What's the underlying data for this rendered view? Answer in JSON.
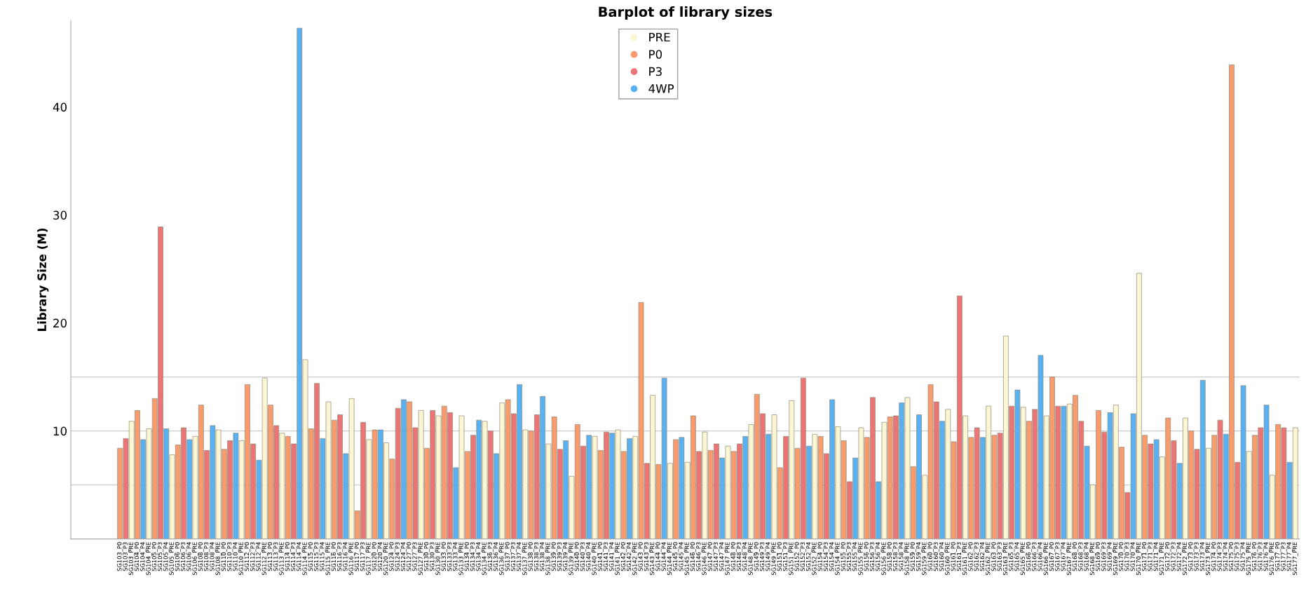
{
  "chart_data": {
    "type": "bar",
    "title": "Barplot of library sizes",
    "ylabel": "Library Size (M)",
    "categories": [
      "SG103_P0",
      "SG103_P3",
      "SG103_PRE",
      "SG104_P0",
      "SG104_P4",
      "SG104_PRE",
      "SG105_P0",
      "SG105_P3",
      "SG105_P4",
      "SG105_PRE",
      "SG106_P0",
      "SG106_P3",
      "SG106_P4",
      "SG106_PRE",
      "SG108_P0",
      "SG108_P3",
      "SG108_P4",
      "SG108_PRE",
      "SG110_P0",
      "SG110_P3",
      "SG110_P4",
      "SG110_PRE",
      "SG112_P0",
      "SG112_P3",
      "SG112_P4",
      "SG112_PRE",
      "SG113_P0",
      "SG113_P3",
      "SG113_PRE",
      "SG114_P0",
      "SG114_P3",
      "SG114_P4",
      "SG114_PRE",
      "SG115_P0",
      "SG115_P3",
      "SG115_P4",
      "SG115_PRE",
      "SG116_P0",
      "SG116_P3",
      "SG116_P4",
      "SG116_PRE",
      "SG117_P0",
      "SG117_P3",
      "SG117_PRE",
      "SG120_P0",
      "SG120_P4",
      "SG120_PRE",
      "SG124_P0",
      "SG124_P3",
      "SG124_P4",
      "SG127_P0",
      "SG127_P3",
      "SG127_PRE",
      "SG130_P0",
      "SG130_P3",
      "SG130_PRE",
      "SG133_P0",
      "SG133_P3",
      "SG133_P4",
      "SG133_PRE",
      "SG134_P0",
      "SG134_P3",
      "SG134_P4",
      "SG134_PRE",
      "SG136_P3",
      "SG136_P4",
      "SG136_PRE",
      "SG137_P0",
      "SG137_P3",
      "SG137_P4",
      "SG137_PRE",
      "SG138_P0",
      "SG138_P3",
      "SG138_P4",
      "SG138_PRE",
      "SG139_P0",
      "SG139_P3",
      "SG139_P4",
      "SG139_PRE",
      "SG140_P0",
      "SG140_P3",
      "SG140_P4",
      "SG140_PRE",
      "SG141_P0",
      "SG141_P3",
      "SG141_P4",
      "SG141_PRE",
      "SG142_P0",
      "SG142_P4",
      "SG142_PRE",
      "SG143_P0",
      "SG143_P3",
      "SG143_PRE",
      "SG144_P0",
      "SG144_P4",
      "SG144_PRE",
      "SG145_P0",
      "SG145_P4",
      "SG145_PRE",
      "SG146_P0",
      "SG146_P3",
      "SG146_PRE",
      "SG147_P0",
      "SG147_P3",
      "SG147_P4",
      "SG147_PRE",
      "SG148_P0",
      "SG148_P3",
      "SG148_P4",
      "SG148_PRE",
      "SG149_P0",
      "SG149_P3",
      "SG149_P4",
      "SG149_PRE",
      "SG151_P0",
      "SG151_P3",
      "SG151_PRE",
      "SG152_P0",
      "SG152_P3",
      "SG152_P4",
      "SG152_PRE",
      "SG154_P0",
      "SG154_P3",
      "SG154_P4",
      "SG154_PRE",
      "SG155_P0",
      "SG155_P3",
      "SG155_P4",
      "SG155_PRE",
      "SG156_P0",
      "SG156_P3",
      "SG156_P4",
      "SG156_PRE",
      "SG158_P0",
      "SG158_P3",
      "SG158_P4",
      "SG158_PRE",
      "SG159_P0",
      "SG159_P4",
      "SG159_PRE",
      "SG160_P0",
      "SG160_P3",
      "SG160_P4",
      "SG160_PRE",
      "SG161_P0",
      "SG161_P3",
      "SG161_PRE",
      "SG162_P0",
      "SG162_P3",
      "SG162_P4",
      "SG162_PRE",
      "SG163_P0",
      "SG163_P3",
      "SG163_PRE",
      "SG165_P3",
      "SG165_P4",
      "SG165_PRE",
      "SG166_P0",
      "SG166_P3",
      "SG166_P4",
      "SG166_PRE",
      "SG167_P0",
      "SG167_P3",
      "SG167_P4",
      "SG167_PRE",
      "SG168_P0",
      "SG168_P3",
      "SG168_P4",
      "SG168_PRE",
      "SG169_P0",
      "SG169_P3",
      "SG169_P4",
      "SG169_PRE",
      "SG170_P0",
      "SG170_P3",
      "SG170_P4",
      "SG170_PRE",
      "SG171_P0",
      "SG171_P3",
      "SG171_P4",
      "SG171_PRE",
      "SG172_P0",
      "SG172_P3",
      "SG172_P4",
      "SG172_PRE",
      "SG173_P0",
      "SG173_P3",
      "SG173_P4",
      "SG173_PRE",
      "SG174_P0",
      "SG174_P3",
      "SG174_P4",
      "SG175_P0",
      "SG175_P3",
      "SG175_P4",
      "SG175_PRE",
      "SG176_P0",
      "SG176_P3",
      "SG176_P4",
      "SG176_PRE",
      "SG177_P0",
      "SG177_P3",
      "SG177_P4",
      "SG177_PRE"
    ],
    "series": [
      {
        "name": "PRE",
        "color": "#fdf6d3",
        "values": [
          null,
          null,
          10.9,
          null,
          null,
          10.2,
          null,
          null,
          null,
          7.8,
          null,
          null,
          null,
          9.5,
          null,
          null,
          null,
          10.1,
          null,
          null,
          null,
          9.1,
          null,
          null,
          null,
          14.9,
          null,
          null,
          9.8,
          null,
          null,
          null,
          16.6,
          null,
          null,
          null,
          12.7,
          null,
          null,
          null,
          13.0,
          null,
          null,
          9.2,
          null,
          null,
          8.9,
          null,
          null,
          null,
          null,
          null,
          11.9,
          null,
          null,
          11.4,
          null,
          null,
          null,
          11.4,
          null,
          null,
          null,
          10.9,
          null,
          null,
          12.6,
          null,
          null,
          null,
          10.1,
          null,
          null,
          null,
          8.8,
          null,
          null,
          null,
          5.8,
          null,
          null,
          null,
          9.5,
          null,
          null,
          null,
          10.1,
          null,
          null,
          9.5,
          null,
          null,
          13.3,
          null,
          null,
          7.0,
          null,
          null,
          7.1,
          null,
          null,
          9.9,
          null,
          null,
          null,
          8.6,
          null,
          null,
          null,
          10.6,
          null,
          null,
          null,
          11.5,
          null,
          null,
          12.8,
          null,
          null,
          null,
          9.7,
          null,
          null,
          null,
          10.4,
          null,
          null,
          null,
          10.3,
          null,
          null,
          null,
          10.8,
          null,
          null,
          null,
          13.1,
          null,
          null,
          5.9,
          null,
          null,
          null,
          12.0,
          null,
          null,
          11.4,
          null,
          null,
          null,
          12.3,
          null,
          null,
          18.8,
          null,
          null,
          12.2,
          null,
          null,
          null,
          11.4,
          null,
          null,
          null,
          12.5,
          null,
          null,
          null,
          5.0,
          null,
          null,
          null,
          12.4,
          null,
          null,
          null,
          24.6,
          null,
          null,
          null,
          7.6,
          null,
          null,
          null,
          11.2,
          null,
          null,
          null,
          8.4,
          null,
          null,
          null,
          null,
          null,
          null,
          8.1,
          null,
          null,
          null,
          5.9,
          null,
          null,
          null,
          10.3
        ]
      },
      {
        "name": "P0",
        "color": "#f99b6c",
        "values": [
          8.4,
          null,
          null,
          11.9,
          null,
          null,
          13.0,
          null,
          null,
          null,
          8.7,
          null,
          null,
          null,
          12.4,
          null,
          null,
          null,
          8.3,
          null,
          null,
          null,
          14.3,
          null,
          null,
          null,
          12.4,
          null,
          null,
          9.5,
          null,
          null,
          null,
          10.2,
          null,
          null,
          null,
          11.0,
          null,
          null,
          null,
          2.6,
          null,
          null,
          10.1,
          null,
          null,
          7.4,
          null,
          null,
          12.7,
          null,
          null,
          8.4,
          null,
          null,
          12.3,
          null,
          null,
          null,
          8.1,
          null,
          null,
          null,
          null,
          null,
          null,
          12.9,
          null,
          null,
          null,
          10.0,
          null,
          null,
          null,
          11.3,
          null,
          null,
          null,
          10.6,
          null,
          null,
          null,
          8.2,
          null,
          null,
          null,
          8.1,
          null,
          null,
          21.9,
          null,
          null,
          6.9,
          null,
          null,
          9.2,
          null,
          null,
          11.4,
          null,
          null,
          8.2,
          null,
          null,
          null,
          8.1,
          null,
          null,
          null,
          13.4,
          null,
          null,
          null,
          6.6,
          null,
          null,
          8.4,
          null,
          null,
          null,
          9.5,
          null,
          null,
          null,
          9.1,
          null,
          null,
          null,
          9.4,
          null,
          null,
          null,
          11.3,
          null,
          null,
          null,
          6.7,
          null,
          null,
          14.3,
          null,
          null,
          null,
          9.0,
          null,
          null,
          9.4,
          null,
          null,
          null,
          9.6,
          null,
          null,
          null,
          null,
          null,
          10.9,
          null,
          null,
          null,
          15.0,
          null,
          null,
          null,
          13.3,
          null,
          null,
          null,
          11.9,
          null,
          null,
          null,
          8.5,
          null,
          null,
          null,
          9.6,
          null,
          null,
          null,
          11.2,
          null,
          null,
          null,
          10.0,
          null,
          null,
          null,
          9.6,
          null,
          null,
          43.9,
          null,
          null,
          null,
          9.6,
          null,
          null,
          null,
          10.6,
          null,
          null,
          null
        ]
      },
      {
        "name": "P3",
        "color": "#ec7474",
        "values": [
          null,
          9.3,
          null,
          null,
          null,
          null,
          null,
          28.9,
          null,
          null,
          null,
          10.3,
          null,
          null,
          null,
          8.2,
          null,
          null,
          null,
          9.1,
          null,
          null,
          null,
          8.8,
          null,
          null,
          null,
          10.5,
          null,
          null,
          8.8,
          null,
          null,
          null,
          14.4,
          null,
          null,
          null,
          11.5,
          null,
          null,
          null,
          10.8,
          null,
          null,
          null,
          null,
          null,
          12.1,
          null,
          null,
          10.3,
          null,
          null,
          11.9,
          null,
          null,
          11.7,
          null,
          null,
          null,
          9.6,
          null,
          null,
          10.0,
          null,
          null,
          null,
          11.6,
          null,
          null,
          null,
          11.5,
          null,
          null,
          null,
          8.3,
          null,
          null,
          null,
          8.6,
          null,
          null,
          null,
          9.9,
          null,
          null,
          null,
          null,
          null,
          null,
          7.0,
          null,
          null,
          null,
          null,
          null,
          null,
          null,
          null,
          8.1,
          null,
          null,
          8.8,
          null,
          null,
          null,
          8.8,
          null,
          null,
          null,
          11.6,
          null,
          null,
          null,
          9.5,
          null,
          null,
          14.9,
          null,
          null,
          null,
          7.9,
          null,
          null,
          null,
          5.3,
          null,
          null,
          null,
          13.1,
          null,
          null,
          null,
          11.4,
          null,
          null,
          null,
          null,
          null,
          null,
          12.7,
          null,
          null,
          null,
          22.5,
          null,
          null,
          10.3,
          null,
          null,
          null,
          9.8,
          null,
          12.3,
          null,
          null,
          null,
          12.0,
          null,
          null,
          null,
          12.3,
          null,
          null,
          null,
          10.9,
          null,
          null,
          null,
          9.9,
          null,
          null,
          null,
          4.3,
          null,
          null,
          null,
          8.8,
          null,
          null,
          null,
          9.1,
          null,
          null,
          null,
          8.3,
          null,
          null,
          null,
          11.0,
          null,
          null,
          7.1,
          null,
          null,
          null,
          10.3,
          null,
          null,
          null,
          10.3,
          null,
          null
        ]
      },
      {
        "name": "4WP",
        "color": "#58b1f2",
        "values": [
          null,
          null,
          null,
          null,
          9.2,
          null,
          null,
          null,
          10.2,
          null,
          null,
          null,
          9.2,
          null,
          null,
          null,
          10.5,
          null,
          null,
          null,
          9.8,
          null,
          null,
          null,
          7.3,
          null,
          null,
          null,
          null,
          null,
          null,
          47.3,
          null,
          null,
          null,
          9.3,
          null,
          null,
          null,
          7.9,
          null,
          null,
          null,
          null,
          null,
          10.1,
          null,
          null,
          null,
          12.9,
          null,
          null,
          null,
          null,
          null,
          null,
          null,
          null,
          6.6,
          null,
          null,
          null,
          11.0,
          null,
          null,
          7.9,
          null,
          null,
          null,
          14.3,
          null,
          null,
          null,
          13.2,
          null,
          null,
          null,
          9.1,
          null,
          null,
          null,
          9.6,
          null,
          null,
          null,
          9.8,
          null,
          null,
          9.3,
          null,
          null,
          null,
          null,
          null,
          14.9,
          null,
          null,
          9.4,
          null,
          null,
          null,
          null,
          null,
          null,
          7.5,
          null,
          null,
          null,
          9.5,
          null,
          null,
          null,
          9.7,
          null,
          null,
          null,
          null,
          null,
          null,
          8.6,
          null,
          null,
          null,
          12.9,
          null,
          null,
          null,
          7.5,
          null,
          null,
          null,
          5.3,
          null,
          null,
          null,
          12.6,
          null,
          null,
          11.5,
          null,
          null,
          null,
          10.9,
          null,
          null,
          null,
          null,
          null,
          null,
          9.4,
          null,
          null,
          null,
          null,
          null,
          13.8,
          null,
          null,
          null,
          17.0,
          null,
          null,
          null,
          12.3,
          null,
          null,
          null,
          8.6,
          null,
          null,
          null,
          11.7,
          null,
          null,
          null,
          11.6,
          null,
          null,
          null,
          9.2,
          null,
          null,
          null,
          7.0,
          null,
          null,
          null,
          14.7,
          null,
          null,
          null,
          9.7,
          null,
          null,
          14.2,
          null,
          null,
          null,
          12.4,
          null,
          null,
          null,
          7.1,
          null
        ]
      }
    ],
    "ylim": [
      0,
      48
    ],
    "yticks": [
      10,
      20,
      30,
      40
    ],
    "grid": false,
    "legend": "top",
    "ref_lines": [
      {
        "axis": "y",
        "value": 5,
        "label": null,
        "color": "#cccccc"
      },
      {
        "axis": "y",
        "value": 10,
        "label": null,
        "color": "#cccccc"
      },
      {
        "axis": "y",
        "value": 15,
        "label": null,
        "color": "#cccccc"
      }
    ]
  }
}
